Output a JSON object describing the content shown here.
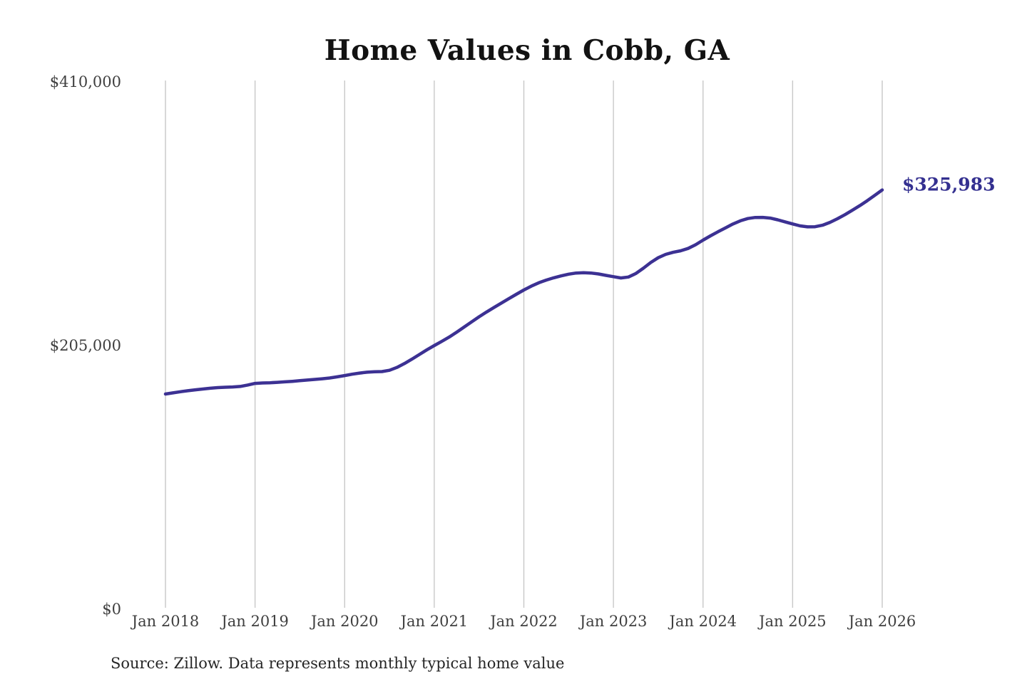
{
  "window": {
    "background": "#ffffff"
  },
  "chart": {
    "title": "Home Values in Cobb, GA",
    "end_label": "$325,983",
    "source_note": "Source: Zillow. Data represents monthly typical home value",
    "colors": {
      "line": "#3c3193",
      "end_label": "#343090",
      "grid": "#c8c8c8",
      "axis_text": "#3f3f3f",
      "title": "#121212",
      "source_text": "#262626",
      "background": "#ffffff"
    },
    "y_axis": {
      "labels": [
        "$410,000",
        "$205,000",
        "$0"
      ],
      "values": [
        410000,
        205000,
        0
      ]
    },
    "x_axis": {
      "labels": [
        "Jan 2018",
        "Jan 2019",
        "Jan 2020",
        "Jan 2021",
        "Jan 2022",
        "Jan 2023",
        "Jan 2024",
        "Jan 2025",
        "Jan 2026"
      ]
    }
  },
  "chart_data": {
    "type": "line",
    "title": "Home Values in Cobb, GA",
    "series_name": "Monthly typical home value",
    "xlabel": "",
    "ylabel": "",
    "ylim": [
      0,
      410000
    ],
    "yticks": [
      0,
      205000,
      410000
    ],
    "ytick_labels": [
      "$0",
      "$205,000",
      "$410,000"
    ],
    "xtick_labels": [
      "Jan 2018",
      "Jan 2019",
      "Jan 2020",
      "Jan 2021",
      "Jan 2022",
      "Jan 2023",
      "Jan 2024",
      "Jan 2025",
      "Jan 2026"
    ],
    "grid": "vertical-only",
    "legend": "none",
    "annotation": {
      "text": "$325,983",
      "x": "2026-01",
      "value": 325983
    },
    "x": [
      "2018-01",
      "2018-02",
      "2018-03",
      "2018-04",
      "2018-05",
      "2018-06",
      "2018-07",
      "2018-08",
      "2018-09",
      "2018-10",
      "2018-11",
      "2018-12",
      "2019-01",
      "2019-02",
      "2019-03",
      "2019-04",
      "2019-05",
      "2019-06",
      "2019-07",
      "2019-08",
      "2019-09",
      "2019-10",
      "2019-11",
      "2019-12",
      "2020-01",
      "2020-02",
      "2020-03",
      "2020-04",
      "2020-05",
      "2020-06",
      "2020-07",
      "2020-08",
      "2020-09",
      "2020-10",
      "2020-11",
      "2020-12",
      "2021-01",
      "2021-02",
      "2021-03",
      "2021-04",
      "2021-05",
      "2021-06",
      "2021-07",
      "2021-08",
      "2021-09",
      "2021-10",
      "2021-11",
      "2021-12",
      "2022-01",
      "2022-02",
      "2022-03",
      "2022-04",
      "2022-05",
      "2022-06",
      "2022-07",
      "2022-08",
      "2022-09",
      "2022-10",
      "2022-11",
      "2022-12",
      "2023-01",
      "2023-02",
      "2023-03",
      "2023-04",
      "2023-05",
      "2023-06",
      "2023-07",
      "2023-08",
      "2023-09",
      "2023-10",
      "2023-11",
      "2023-12",
      "2024-01",
      "2024-02",
      "2024-03",
      "2024-04",
      "2024-05",
      "2024-06",
      "2024-07",
      "2024-08",
      "2024-09",
      "2024-10",
      "2024-11",
      "2024-12",
      "2025-01",
      "2025-02",
      "2025-03",
      "2025-04",
      "2025-05",
      "2025-06",
      "2025-07",
      "2025-08",
      "2025-09",
      "2025-10",
      "2025-11",
      "2025-12",
      "2026-01"
    ],
    "values": [
      167300,
      168200,
      169100,
      169900,
      170600,
      171200,
      171800,
      172300,
      172600,
      172800,
      173200,
      174300,
      175600,
      175900,
      176100,
      176400,
      176800,
      177200,
      177700,
      178200,
      178700,
      179200,
      179800,
      180700,
      181700,
      182700,
      183600,
      184300,
      184600,
      184800,
      185800,
      188000,
      191000,
      194400,
      198000,
      201600,
      205000,
      208200,
      211600,
      215400,
      219400,
      223400,
      227400,
      231100,
      234600,
      238100,
      241500,
      244900,
      248200,
      251200,
      253800,
      255900,
      257700,
      259200,
      260500,
      261400,
      261600,
      261400,
      260700,
      259600,
      258600,
      257600,
      258300,
      261000,
      265100,
      269600,
      273300,
      275900,
      277500,
      278700,
      280500,
      283400,
      287000,
      290300,
      293500,
      296500,
      299500,
      302000,
      303800,
      304600,
      304700,
      304100,
      302800,
      301200,
      299600,
      298100,
      297300,
      297400,
      298600,
      300800,
      303600,
      306800,
      310200,
      313800,
      317700,
      321800,
      325983
    ]
  }
}
